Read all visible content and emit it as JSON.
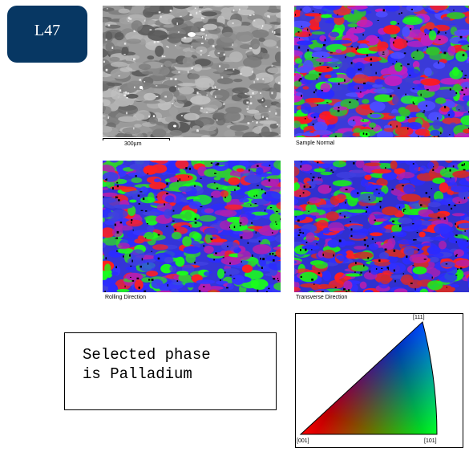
{
  "sample_label": "L47",
  "panels": {
    "sem": {
      "scalebar": "300µm"
    },
    "sample_normal": {
      "caption": "Sample Normal"
    },
    "rolling_direction": {
      "caption": "Rolling Direction"
    },
    "transverse_direction": {
      "caption": "Transverse Direction"
    }
  },
  "phase_note": {
    "line1": "Selected phase",
    "line2": "is Palladium"
  },
  "ipf_legend": {
    "corner_111": "[111]",
    "corner_001": "[001]",
    "corner_101": "[101]",
    "colors": {
      "001": "#ff0000",
      "101": "#00ff00",
      "111": "#0000ff"
    }
  }
}
